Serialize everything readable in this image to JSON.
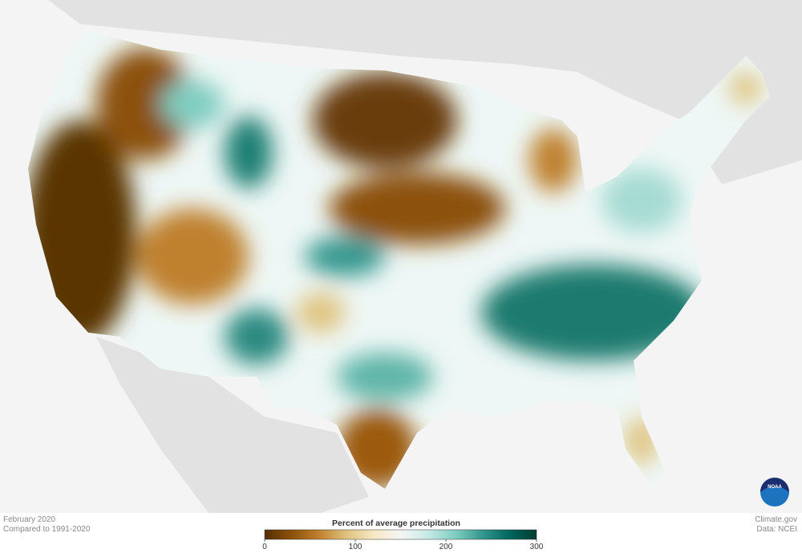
{
  "caption": {
    "date": "February 2020",
    "baseline": "Compared to 1991-2020"
  },
  "legend": {
    "title": "Percent of average precipitation",
    "range": [
      0,
      300
    ],
    "ticks": [
      0,
      100,
      200,
      300
    ],
    "colors": [
      "#543005",
      "#8c510a",
      "#bf812d",
      "#dfc27d",
      "#f6e8c3",
      "#f5f5f5",
      "#c7eae5",
      "#80cdc1",
      "#35978f",
      "#01665e",
      "#003c30"
    ]
  },
  "credits": {
    "source": "Climate.gov",
    "data": "Data: NCEI",
    "logo": "NOAA"
  }
}
